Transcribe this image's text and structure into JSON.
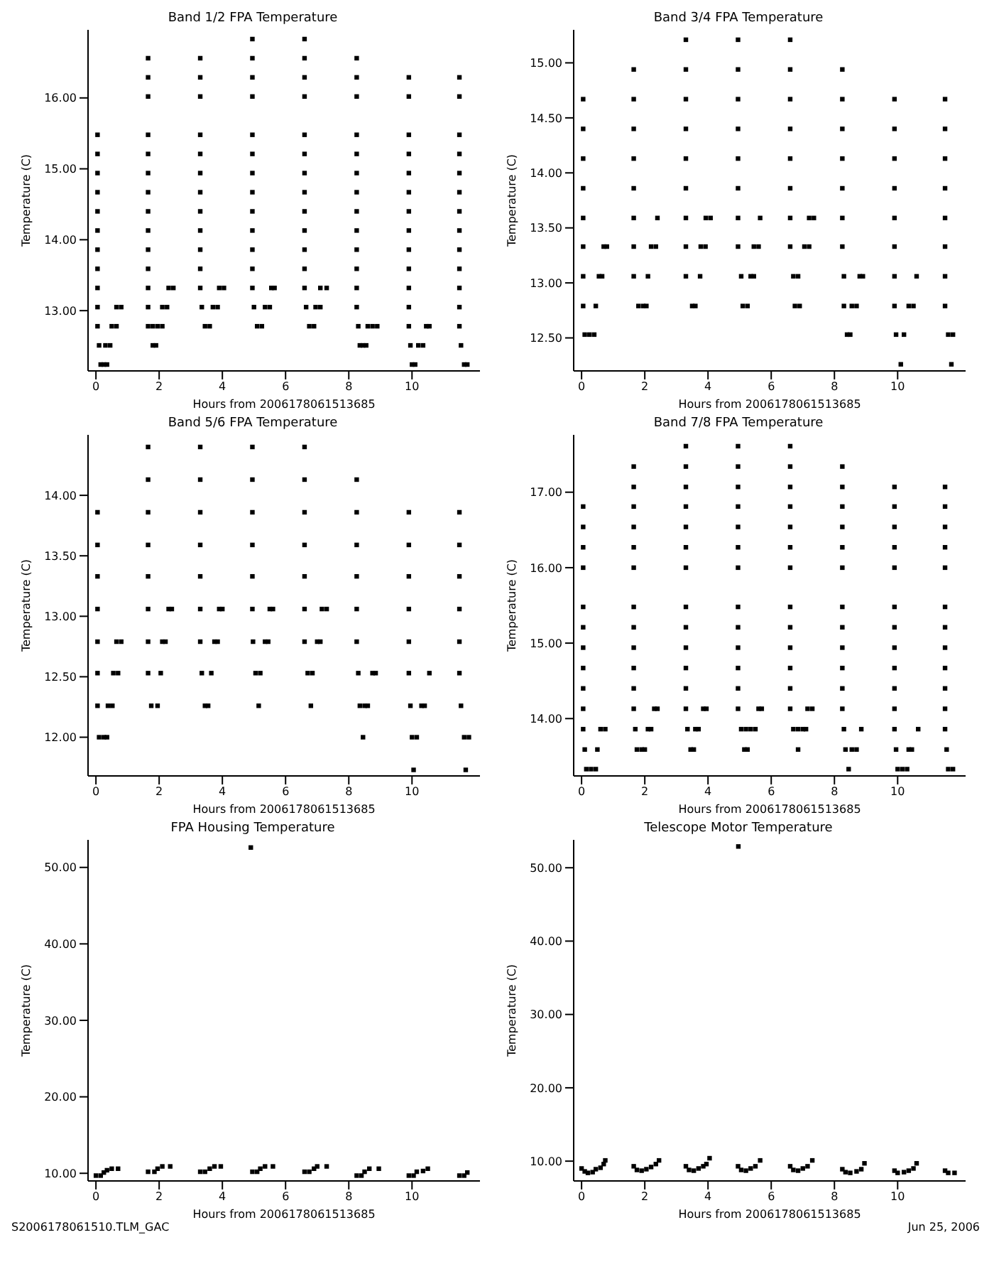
{
  "chart_data": [
    {
      "type": "scatter",
      "title": "Band 1/2 FPA Temperature",
      "xlabel": "Hours from 2006178061513685",
      "ylabel": "Temperature (C)",
      "marker": "square",
      "xlim": [
        -0.25,
        12.15
      ],
      "xticks": [
        0,
        2,
        4,
        6,
        8,
        10
      ],
      "ylim": [
        12.15,
        16.96
      ],
      "yticks": [
        {
          "value": 13,
          "label": "13.00"
        },
        {
          "value": 14,
          "label": "14.00"
        },
        {
          "value": 15,
          "label": "15.00"
        },
        {
          "value": 16,
          "label": "16.00"
        }
      ],
      "series": [
        {
          "color": "#000000",
          "x": [
            0.05,
            0.05,
            0.05,
            0.05,
            0.05,
            0.05,
            0.05,
            0.05,
            0.05,
            0.05,
            0.05,
            0.1,
            0.15,
            0.25,
            0.35,
            0.3,
            0.45,
            0.5,
            0.65,
            0.65,
            0.8
          ],
          "values": [
            15.48,
            15.21,
            14.94,
            14.67,
            14.4,
            14.13,
            13.86,
            13.59,
            13.32,
            13.05,
            12.78,
            12.51,
            12.24,
            12.24,
            12.24,
            12.51,
            12.51,
            12.78,
            12.78,
            13.05,
            13.05
          ]
        },
        {
          "color": "#000000",
          "x": [
            1.65,
            1.65,
            1.65,
            1.65,
            1.65,
            1.65,
            1.65,
            1.65,
            1.65,
            1.65,
            1.65,
            1.65,
            1.65,
            1.65,
            1.8,
            1.9,
            1.8,
            1.95,
            2.1,
            2.1,
            2.25,
            2.3,
            2.45
          ],
          "values": [
            16.56,
            16.29,
            16.02,
            15.48,
            15.21,
            14.94,
            14.67,
            14.4,
            14.13,
            13.86,
            13.59,
            13.32,
            13.05,
            12.78,
            12.51,
            12.51,
            12.78,
            12.78,
            12.78,
            13.05,
            13.05,
            13.32,
            13.32
          ]
        },
        {
          "color": "#000000",
          "x": [
            3.3,
            3.3,
            3.3,
            3.3,
            3.3,
            3.3,
            3.3,
            3.3,
            3.3,
            3.3,
            3.3,
            3.3,
            3.35,
            3.45,
            3.6,
            3.7,
            3.85,
            3.9,
            4.05
          ],
          "values": [
            16.56,
            16.29,
            16.02,
            15.48,
            15.21,
            14.94,
            14.67,
            14.4,
            14.13,
            13.86,
            13.59,
            13.32,
            13.05,
            12.78,
            12.78,
            13.05,
            13.05,
            13.32,
            13.32
          ]
        },
        {
          "color": "#000000",
          "x": [
            4.95,
            4.95,
            4.95,
            4.95,
            4.95,
            4.95,
            4.95,
            4.95,
            4.95,
            4.95,
            4.95,
            4.95,
            4.95,
            5.0,
            5.1,
            5.25,
            5.35,
            5.5,
            5.55,
            5.65
          ],
          "values": [
            16.83,
            16.56,
            16.29,
            16.02,
            15.48,
            15.21,
            14.94,
            14.67,
            14.4,
            14.13,
            13.86,
            13.59,
            13.32,
            13.05,
            12.78,
            12.78,
            13.05,
            13.05,
            13.32,
            13.32
          ]
        },
        {
          "color": "#000000",
          "x": [
            6.6,
            6.6,
            6.6,
            6.6,
            6.6,
            6.6,
            6.6,
            6.6,
            6.6,
            6.6,
            6.6,
            6.6,
            6.6,
            6.65,
            6.75,
            6.9,
            6.95,
            7.1,
            7.1,
            7.3
          ],
          "values": [
            16.83,
            16.56,
            16.29,
            16.02,
            15.48,
            15.21,
            14.94,
            14.67,
            14.4,
            14.13,
            13.86,
            13.59,
            13.32,
            13.05,
            12.78,
            12.78,
            13.05,
            13.05,
            13.32,
            13.32
          ]
        },
        {
          "color": "#000000",
          "x": [
            8.25,
            8.25,
            8.25,
            8.25,
            8.25,
            8.25,
            8.25,
            8.25,
            8.25,
            8.25,
            8.25,
            8.25,
            8.25,
            8.3,
            8.35,
            8.45,
            8.55,
            8.6,
            8.75,
            8.9
          ],
          "values": [
            16.56,
            16.29,
            16.02,
            15.48,
            15.21,
            14.94,
            14.67,
            14.4,
            14.13,
            13.86,
            13.59,
            13.32,
            13.05,
            12.78,
            12.51,
            12.51,
            12.51,
            12.78,
            12.78,
            12.78
          ]
        },
        {
          "color": "#000000",
          "x": [
            9.9,
            9.9,
            9.9,
            9.9,
            9.9,
            9.9,
            9.9,
            9.9,
            9.9,
            9.9,
            9.9,
            9.9,
            9.9,
            9.95,
            10.0,
            10.1,
            10.2,
            10.35,
            10.45,
            10.55
          ],
          "values": [
            16.29,
            16.02,
            15.48,
            15.21,
            14.94,
            14.67,
            14.4,
            14.13,
            13.86,
            13.59,
            13.32,
            13.05,
            12.78,
            12.51,
            12.24,
            12.24,
            12.51,
            12.51,
            12.78,
            12.78
          ]
        },
        {
          "color": "#000000",
          "x": [
            11.5,
            11.5,
            11.5,
            11.5,
            11.5,
            11.5,
            11.5,
            11.5,
            11.5,
            11.5,
            11.5,
            11.5,
            11.5,
            11.55,
            11.65,
            11.75
          ],
          "values": [
            16.29,
            16.02,
            15.48,
            15.21,
            14.94,
            14.67,
            14.4,
            14.13,
            13.86,
            13.59,
            13.32,
            13.05,
            12.78,
            12.51,
            12.24,
            12.24
          ]
        }
      ]
    },
    {
      "type": "scatter",
      "title": "Band 3/4 FPA Temperature",
      "xlabel": "Hours from 2006178061513685",
      "ylabel": "Temperature (C)",
      "marker": "square",
      "xlim": [
        -0.25,
        12.15
      ],
      "xticks": [
        0,
        2,
        4,
        6,
        8,
        10
      ],
      "ylim": [
        12.2,
        15.3
      ],
      "yticks": [
        {
          "value": 12.5,
          "label": "12.50"
        },
        {
          "value": 13,
          "label": "13.00"
        },
        {
          "value": 13.5,
          "label": "13.50"
        },
        {
          "value": 14,
          "label": "14.00"
        },
        {
          "value": 14.5,
          "label": "14.50"
        },
        {
          "value": 15,
          "label": "15.00"
        }
      ],
      "series": [
        {
          "color": "#000000",
          "x": [
            0.05,
            0.05,
            0.05,
            0.05,
            0.05,
            0.05,
            0.05,
            0.05,
            0.1,
            0.25,
            0.4,
            0.45,
            0.55,
            0.65,
            0.7,
            0.8
          ],
          "values": [
            14.67,
            14.4,
            14.13,
            13.86,
            13.59,
            13.33,
            13.06,
            12.79,
            12.53,
            12.53,
            12.53,
            12.79,
            13.06,
            13.06,
            13.33,
            13.33
          ]
        },
        {
          "color": "#000000",
          "x": [
            1.65,
            1.65,
            1.65,
            1.65,
            1.65,
            1.65,
            1.65,
            1.65,
            1.8,
            1.95,
            2.05,
            2.1,
            2.2,
            2.35,
            2.4
          ],
          "values": [
            14.94,
            14.67,
            14.4,
            14.13,
            13.86,
            13.59,
            13.33,
            13.06,
            12.79,
            12.79,
            12.79,
            13.06,
            13.33,
            13.33,
            13.59
          ]
        },
        {
          "color": "#000000",
          "x": [
            3.3,
            3.3,
            3.3,
            3.3,
            3.3,
            3.3,
            3.3,
            3.3,
            3.3,
            3.5,
            3.6,
            3.75,
            3.77,
            3.92,
            3.93,
            4.08
          ],
          "values": [
            15.21,
            14.94,
            14.67,
            14.4,
            14.13,
            13.86,
            13.59,
            13.33,
            13.06,
            12.79,
            12.79,
            13.06,
            13.33,
            13.33,
            13.59,
            13.59
          ]
        },
        {
          "color": "#000000",
          "x": [
            4.95,
            4.95,
            4.95,
            4.95,
            4.95,
            4.95,
            4.95,
            4.95,
            5.05,
            5.1,
            5.25,
            5.35,
            5.45,
            5.45,
            5.6,
            5.65
          ],
          "values": [
            15.21,
            14.94,
            14.67,
            14.4,
            14.13,
            13.86,
            13.59,
            13.33,
            13.06,
            12.79,
            12.79,
            13.06,
            13.06,
            13.33,
            13.33,
            13.59
          ]
        },
        {
          "color": "#000000",
          "x": [
            6.6,
            6.6,
            6.6,
            6.6,
            6.6,
            6.6,
            6.6,
            6.6,
            6.7,
            6.85,
            6.75,
            6.9,
            7.05,
            7.2,
            7.2,
            7.35
          ],
          "values": [
            15.21,
            14.94,
            14.67,
            14.4,
            14.13,
            13.86,
            13.59,
            13.33,
            13.06,
            13.06,
            12.79,
            12.79,
            13.33,
            13.33,
            13.59,
            13.59
          ]
        },
        {
          "color": "#000000",
          "x": [
            8.25,
            8.25,
            8.25,
            8.25,
            8.25,
            8.25,
            8.25,
            8.3,
            8.3,
            8.4,
            8.5,
            8.55,
            8.7,
            8.8,
            8.9
          ],
          "values": [
            14.94,
            14.67,
            14.4,
            14.13,
            13.86,
            13.59,
            13.33,
            13.06,
            12.79,
            12.53,
            12.53,
            12.79,
            12.79,
            13.06,
            13.06
          ]
        },
        {
          "color": "#000000",
          "x": [
            9.9,
            9.9,
            9.9,
            9.9,
            9.9,
            9.9,
            9.9,
            9.9,
            9.95,
            10.2,
            10.1,
            10.35,
            10.5,
            10.6
          ],
          "values": [
            14.67,
            14.4,
            14.13,
            13.86,
            13.59,
            13.33,
            13.06,
            12.79,
            12.53,
            12.53,
            12.26,
            12.79,
            12.79,
            13.06
          ]
        },
        {
          "color": "#000000",
          "x": [
            11.5,
            11.5,
            11.5,
            11.5,
            11.5,
            11.5,
            11.5,
            11.5,
            11.6,
            11.75,
            11.7
          ],
          "values": [
            14.67,
            14.4,
            14.13,
            13.86,
            13.59,
            13.33,
            13.06,
            12.79,
            12.53,
            12.53,
            12.26
          ]
        }
      ]
    },
    {
      "type": "scatter",
      "title": "Band 5/6 FPA Temperature",
      "xlabel": "Hours from 2006178061513685",
      "ylabel": "Temperature (C)",
      "marker": "square",
      "xlim": [
        -0.25,
        12.15
      ],
      "xticks": [
        0,
        2,
        4,
        6,
        8,
        10
      ],
      "ylim": [
        11.68,
        14.5
      ],
      "yticks": [
        {
          "value": 12,
          "label": "12.00"
        },
        {
          "value": 12.5,
          "label": "12.50"
        },
        {
          "value": 13,
          "label": "13.00"
        },
        {
          "value": 13.5,
          "label": "13.50"
        },
        {
          "value": 14,
          "label": "14.00"
        }
      ],
      "series": [
        {
          "color": "#000000",
          "x": [
            0.05,
            0.05,
            0.05,
            0.05,
            0.05,
            0.05,
            0.05,
            0.1,
            0.25,
            0.35,
            0.38,
            0.52,
            0.55,
            0.7,
            0.65,
            0.8
          ],
          "values": [
            13.86,
            13.59,
            13.33,
            13.06,
            12.79,
            12.53,
            12.26,
            12.0,
            12.0,
            12.0,
            12.26,
            12.26,
            12.53,
            12.53,
            12.79,
            12.79
          ]
        },
        {
          "color": "#000000",
          "x": [
            1.65,
            1.65,
            1.65,
            1.65,
            1.65,
            1.65,
            1.65,
            1.65,
            1.75,
            1.95,
            2.05,
            2.1,
            2.2,
            2.3,
            2.4
          ],
          "values": [
            14.4,
            14.13,
            13.86,
            13.59,
            13.33,
            13.06,
            12.79,
            12.53,
            12.26,
            12.26,
            12.53,
            12.79,
            12.79,
            13.06,
            13.06
          ]
        },
        {
          "color": "#000000",
          "x": [
            3.3,
            3.3,
            3.3,
            3.3,
            3.3,
            3.3,
            3.3,
            3.35,
            3.45,
            3.55,
            3.65,
            3.75,
            3.85,
            3.9,
            4.0
          ],
          "values": [
            14.4,
            14.13,
            13.86,
            13.59,
            13.33,
            13.06,
            12.79,
            12.53,
            12.26,
            12.26,
            12.53,
            12.79,
            12.79,
            13.06,
            13.06
          ]
        },
        {
          "color": "#000000",
          "x": [
            4.95,
            4.95,
            4.95,
            4.95,
            4.95,
            4.95,
            4.97,
            5.05,
            5.2,
            5.15,
            5.35,
            5.45,
            5.5,
            5.6
          ],
          "values": [
            14.4,
            14.13,
            13.86,
            13.59,
            13.33,
            13.06,
            12.79,
            12.53,
            12.53,
            12.26,
            12.79,
            12.79,
            13.06,
            13.06
          ]
        },
        {
          "color": "#000000",
          "x": [
            6.6,
            6.6,
            6.6,
            6.6,
            6.6,
            6.6,
            6.6,
            6.7,
            6.85,
            6.8,
            7.0,
            7.1,
            7.15,
            7.3
          ],
          "values": [
            14.4,
            14.13,
            13.86,
            13.59,
            13.33,
            13.06,
            12.79,
            12.53,
            12.53,
            12.26,
            12.79,
            12.79,
            13.06,
            13.06
          ]
        },
        {
          "color": "#000000",
          "x": [
            8.25,
            8.25,
            8.25,
            8.25,
            8.25,
            8.25,
            8.3,
            8.35,
            8.5,
            8.6,
            8.45,
            8.75,
            8.85
          ],
          "values": [
            14.13,
            13.86,
            13.59,
            13.33,
            13.06,
            12.79,
            12.53,
            12.26,
            12.26,
            12.26,
            12.0,
            12.53,
            12.53
          ]
        },
        {
          "color": "#000000",
          "x": [
            9.9,
            9.9,
            9.9,
            9.9,
            9.9,
            9.9,
            9.95,
            10.0,
            10.15,
            10.05,
            10.3,
            10.4,
            10.55
          ],
          "values": [
            13.86,
            13.59,
            13.33,
            13.06,
            12.79,
            12.53,
            12.26,
            12.0,
            12.0,
            11.73,
            12.26,
            12.26,
            12.53
          ]
        },
        {
          "color": "#000000",
          "x": [
            11.5,
            11.5,
            11.5,
            11.5,
            11.5,
            11.5,
            11.55,
            11.65,
            11.8,
            11.7
          ],
          "values": [
            13.86,
            13.59,
            13.33,
            13.06,
            12.79,
            12.53,
            12.26,
            12.0,
            12.0,
            11.73
          ]
        }
      ]
    },
    {
      "type": "scatter",
      "title": "Band 7/8 FPA Temperature",
      "xlabel": "Hours from 2006178061513685",
      "ylabel": "Temperature (C)",
      "marker": "square",
      "xlim": [
        -0.25,
        12.15
      ],
      "xticks": [
        0,
        2,
        4,
        6,
        8,
        10
      ],
      "ylim": [
        13.24,
        17.76
      ],
      "yticks": [
        {
          "value": 14,
          "label": "14.00"
        },
        {
          "value": 15,
          "label": "15.00"
        },
        {
          "value": 16,
          "label": "16.00"
        },
        {
          "value": 17,
          "label": "17.00"
        }
      ],
      "series": [
        {
          "color": "#000000",
          "x": [
            0.05,
            0.05,
            0.05,
            0.05,
            0.05,
            0.05,
            0.05,
            0.05,
            0.05,
            0.05,
            0.05,
            0.1,
            0.5,
            0.15,
            0.3,
            0.45,
            0.6,
            0.75
          ],
          "values": [
            16.81,
            16.54,
            16.27,
            16.0,
            15.48,
            15.21,
            14.94,
            14.67,
            14.4,
            14.13,
            13.86,
            13.59,
            13.59,
            13.33,
            13.33,
            13.33,
            13.86,
            13.86
          ]
        },
        {
          "color": "#000000",
          "x": [
            1.65,
            1.65,
            1.65,
            1.65,
            1.65,
            1.65,
            1.65,
            1.65,
            1.65,
            1.65,
            1.65,
            1.65,
            1.7,
            1.75,
            1.9,
            2.0,
            2.1,
            2.2,
            2.3,
            2.4
          ],
          "values": [
            17.34,
            17.07,
            16.81,
            16.54,
            16.27,
            16.0,
            15.48,
            15.21,
            14.94,
            14.67,
            14.4,
            14.13,
            13.86,
            13.59,
            13.59,
            13.59,
            13.86,
            13.86,
            14.13,
            14.13
          ]
        },
        {
          "color": "#000000",
          "x": [
            3.3,
            3.3,
            3.3,
            3.3,
            3.3,
            3.3,
            3.3,
            3.3,
            3.3,
            3.3,
            3.3,
            3.3,
            3.3,
            3.35,
            3.6,
            3.7,
            3.45,
            3.55,
            3.85,
            3.95
          ],
          "values": [
            17.61,
            17.34,
            17.07,
            16.81,
            16.54,
            16.27,
            16.0,
            15.48,
            15.21,
            14.94,
            14.67,
            14.4,
            14.13,
            13.86,
            13.86,
            13.86,
            13.59,
            13.59,
            14.13,
            14.13
          ]
        },
        {
          "color": "#000000",
          "x": [
            4.95,
            4.95,
            4.95,
            4.95,
            4.95,
            4.95,
            4.95,
            4.95,
            4.95,
            4.95,
            4.95,
            4.95,
            4.95,
            5.05,
            5.2,
            5.35,
            5.5,
            5.15,
            5.25,
            5.6,
            5.7
          ],
          "values": [
            17.61,
            17.34,
            17.07,
            16.81,
            16.54,
            16.27,
            16.0,
            15.48,
            15.21,
            14.94,
            14.67,
            14.4,
            14.13,
            13.86,
            13.86,
            13.86,
            13.86,
            13.59,
            13.59,
            14.13,
            14.13
          ]
        },
        {
          "color": "#000000",
          "x": [
            6.6,
            6.6,
            6.6,
            6.6,
            6.6,
            6.6,
            6.6,
            6.6,
            6.6,
            6.6,
            6.6,
            6.6,
            6.6,
            6.7,
            6.85,
            7.0,
            7.1,
            6.85,
            7.15,
            7.3
          ],
          "values": [
            17.61,
            17.34,
            17.07,
            16.81,
            16.54,
            16.27,
            16.0,
            15.48,
            15.21,
            14.94,
            14.67,
            14.4,
            14.13,
            13.86,
            13.86,
            13.86,
            13.86,
            13.59,
            14.13,
            14.13
          ]
        },
        {
          "color": "#000000",
          "x": [
            8.25,
            8.25,
            8.25,
            8.25,
            8.25,
            8.25,
            8.25,
            8.25,
            8.25,
            8.25,
            8.25,
            8.25,
            8.3,
            8.35,
            8.55,
            8.7,
            8.45,
            8.85
          ],
          "values": [
            17.34,
            17.07,
            16.81,
            16.54,
            16.27,
            16.0,
            15.48,
            15.21,
            14.94,
            14.67,
            14.4,
            14.13,
            13.86,
            13.59,
            13.59,
            13.59,
            13.33,
            13.86
          ]
        },
        {
          "color": "#000000",
          "x": [
            9.9,
            9.9,
            9.9,
            9.9,
            9.9,
            9.9,
            9.9,
            9.9,
            9.9,
            9.9,
            9.9,
            9.9,
            9.95,
            10.35,
            10.45,
            10.0,
            10.15,
            10.3,
            10.65
          ],
          "values": [
            17.07,
            16.81,
            16.54,
            16.27,
            16.0,
            15.48,
            15.21,
            14.94,
            14.67,
            14.4,
            14.13,
            13.86,
            13.59,
            13.59,
            13.59,
            13.33,
            13.33,
            13.33,
            13.86
          ]
        },
        {
          "color": "#000000",
          "x": [
            11.5,
            11.5,
            11.5,
            11.5,
            11.5,
            11.5,
            11.5,
            11.5,
            11.5,
            11.5,
            11.5,
            11.5,
            11.55,
            11.6,
            11.75
          ],
          "values": [
            17.07,
            16.81,
            16.54,
            16.27,
            16.0,
            15.48,
            15.21,
            14.94,
            14.67,
            14.4,
            14.13,
            13.86,
            13.59,
            13.33,
            13.33
          ]
        }
      ]
    },
    {
      "type": "scatter",
      "title": "FPA Housing Temperature",
      "xlabel": "Hours from 2006178061513685",
      "ylabel": "Temperature (C)",
      "marker": "square",
      "xlim": [
        -0.25,
        12.15
      ],
      "xticks": [
        0,
        2,
        4,
        6,
        8,
        10
      ],
      "ylim": [
        9.0,
        53.6
      ],
      "yticks": [
        {
          "value": 10,
          "label": "10.00"
        },
        {
          "value": 20,
          "label": "20.00"
        },
        {
          "value": 30,
          "label": "30.00"
        },
        {
          "value": 40,
          "label": "40.00"
        },
        {
          "value": 50,
          "label": "50.00"
        }
      ],
      "annotations": [
        "S2006178061510.TLM_GAC"
      ],
      "series": [
        {
          "color": "#000000",
          "x": [
            0,
            0.15,
            0.25,
            0.35,
            0.5,
            0.7,
            1.65,
            1.85,
            1.95,
            2.1,
            2.35,
            3.3,
            3.45,
            3.6,
            3.75,
            3.95,
            4.9,
            4.95,
            5.1,
            5.2,
            5.35,
            5.6,
            6.6,
            6.75,
            6.9,
            7.0,
            7.3,
            8.25,
            8.4,
            8.5,
            8.65,
            8.95,
            9.9,
            10.05,
            10.15,
            10.35,
            10.5,
            11.5,
            11.65,
            11.75
          ],
          "values": [
            9.7,
            9.7,
            10.1,
            10.4,
            10.6,
            10.6,
            10.2,
            10.2,
            10.6,
            10.9,
            10.9,
            10.2,
            10.2,
            10.6,
            10.9,
            10.9,
            52.6,
            10.2,
            10.2,
            10.6,
            10.9,
            10.9,
            10.2,
            10.2,
            10.6,
            10.9,
            10.9,
            9.7,
            9.7,
            10.2,
            10.6,
            10.6,
            9.7,
            9.7,
            10.2,
            10.3,
            10.6,
            9.7,
            9.7,
            10.1
          ]
        }
      ]
    },
    {
      "type": "scatter",
      "title": "Telescope Motor Temperature",
      "xlabel": "Hours from 2006178061513685",
      "ylabel": "Temperature (C)",
      "marker": "square",
      "xlim": [
        -0.25,
        12.15
      ],
      "xticks": [
        0,
        2,
        4,
        6,
        8,
        10
      ],
      "ylim": [
        7.3,
        53.8
      ],
      "yticks": [
        {
          "value": 10,
          "label": "10.00"
        },
        {
          "value": 20,
          "label": "20.00"
        },
        {
          "value": 30,
          "label": "30.00"
        },
        {
          "value": 40,
          "label": "40.00"
        },
        {
          "value": 50,
          "label": "50.00"
        }
      ],
      "annotations": [
        "Jun 25, 2006"
      ],
      "series": [
        {
          "color": "#000000",
          "x": [
            0,
            0.1,
            0.2,
            0.35,
            0.45,
            0.6,
            0.7,
            0.75,
            1.65,
            1.75,
            1.9,
            2.05,
            2.2,
            2.35,
            2.45,
            3.3,
            3.4,
            3.55,
            3.7,
            3.85,
            3.95,
            4.05,
            4.95,
            4.96,
            5.05,
            5.2,
            5.35,
            5.5,
            5.65,
            6.6,
            6.7,
            6.85,
            7.0,
            7.15,
            7.3,
            8.25,
            8.35,
            8.5,
            8.7,
            8.85,
            8.95,
            9.9,
            10.0,
            10.2,
            10.35,
            10.5,
            10.6,
            11.5,
            11.6,
            11.8
          ],
          "values": [
            9.0,
            8.6,
            8.4,
            8.5,
            8.9,
            9.1,
            9.6,
            10.1,
            9.3,
            8.8,
            8.7,
            8.9,
            9.2,
            9.6,
            10.1,
            9.3,
            8.8,
            8.7,
            9.0,
            9.3,
            9.6,
            10.4,
            9.3,
            52.9,
            8.8,
            8.7,
            9.0,
            9.3,
            10.1,
            9.3,
            8.8,
            8.7,
            9.0,
            9.3,
            10.1,
            8.9,
            8.5,
            8.4,
            8.6,
            8.9,
            9.7,
            8.7,
            8.4,
            8.5,
            8.7,
            9.0,
            9.7,
            8.7,
            8.4,
            8.4
          ]
        }
      ]
    }
  ]
}
